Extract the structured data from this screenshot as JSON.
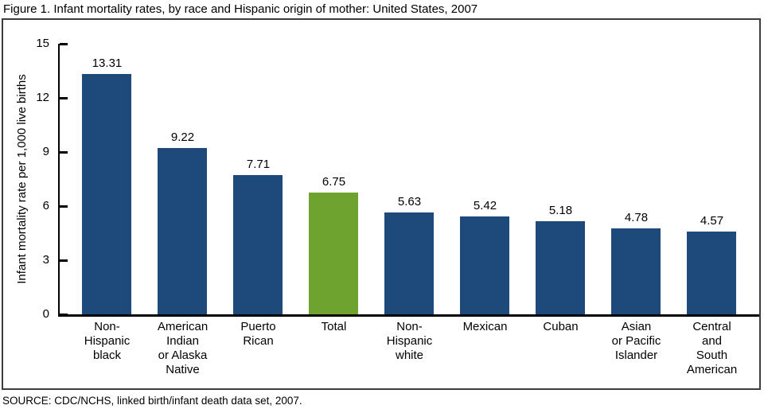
{
  "title": "Figure 1. Infant mortality rates, by race and Hispanic origin of mother: United States, 2007",
  "source": "SOURCE: CDC/NCHS, linked birth/infant death data set, 2007.",
  "colors": {
    "bar_blue": "#1d4a7a",
    "bar_green": "#6da32e",
    "frame_border": "#3d3d3d",
    "axis_black": "#000000"
  },
  "chart_data": {
    "type": "bar",
    "title": "Figure 1. Infant mortality rates, by race and Hispanic origin of mother: United States, 2007",
    "xlabel": "",
    "ylabel": "Infant mortality rate per 1,000 live births",
    "ylim": [
      0,
      15
    ],
    "yticks": [
      0,
      3,
      6,
      9,
      12,
      15
    ],
    "grid": false,
    "legend": "none",
    "categories": [
      "Non-\nHispanic\nblack",
      "American\nIndian\nor Alaska\nNative",
      "Puerto\nRican",
      "Total",
      "Non-\nHispanic\nwhite",
      "Mexican",
      "Cuban",
      "Asian\nor Pacific\nIslander",
      "Central\nand\nSouth\nAmerican"
    ],
    "values": [
      13.31,
      9.22,
      7.71,
      6.75,
      5.63,
      5.42,
      5.18,
      4.78,
      4.57
    ],
    "value_labels": [
      "13.31",
      "9.22",
      "7.71",
      "6.75",
      "5.63",
      "5.42",
      "5.18",
      "4.78",
      "4.57"
    ],
    "highlight_index": 3,
    "highlight_category": "Total"
  }
}
